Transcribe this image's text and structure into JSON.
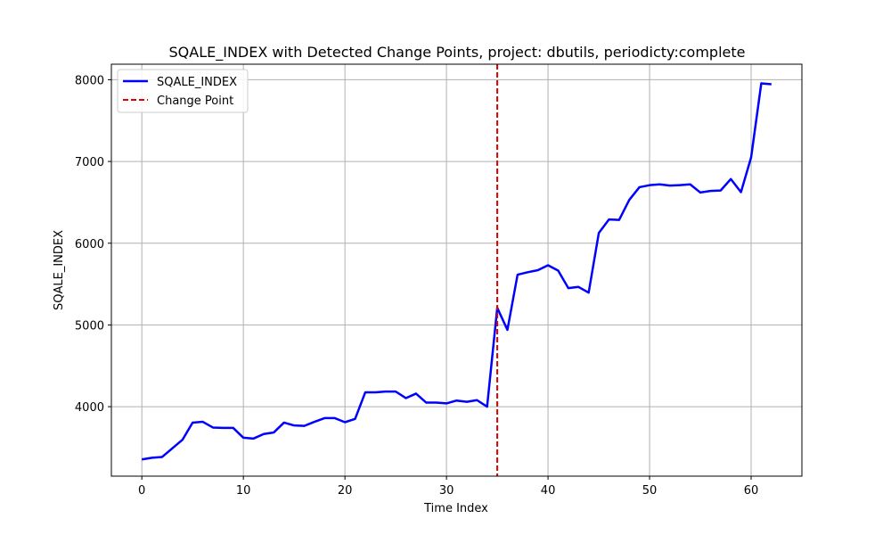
{
  "chart_data": {
    "type": "line",
    "title": "SQALE_INDEX with Detected Change Points, project: dbutils, periodicty:complete",
    "xlabel": "Time Index",
    "ylabel": "SQALE_INDEX",
    "xlim": [
      -3,
      65
    ],
    "ylim": [
      3150,
      8190
    ],
    "xticks": [
      0,
      10,
      20,
      30,
      40,
      50,
      60
    ],
    "yticks": [
      4000,
      5000,
      6000,
      7000,
      8000
    ],
    "grid": true,
    "legend_position": "upper-left",
    "series": [
      {
        "name": "SQALE_INDEX",
        "color": "#0000ff",
        "style": "solid",
        "x": [
          0,
          1,
          2,
          3,
          4,
          5,
          6,
          7,
          8,
          9,
          10,
          11,
          12,
          13,
          14,
          15,
          16,
          17,
          18,
          19,
          20,
          21,
          22,
          23,
          24,
          25,
          26,
          27,
          28,
          29,
          30,
          31,
          32,
          33,
          34,
          35,
          36,
          37,
          38,
          39,
          40,
          41,
          42,
          43,
          44,
          45,
          46,
          47,
          48,
          49,
          50,
          51,
          52,
          53,
          54,
          55,
          56,
          57,
          58,
          59,
          60,
          61,
          62
        ],
        "values": [
          3355,
          3375,
          3385,
          3490,
          3595,
          3805,
          3815,
          3745,
          3740,
          3740,
          3620,
          3610,
          3665,
          3685,
          3805,
          3770,
          3765,
          3815,
          3860,
          3860,
          3810,
          3850,
          4175,
          4175,
          4185,
          4185,
          4105,
          4160,
          4050,
          4050,
          4040,
          4075,
          4060,
          4080,
          4000,
          5210,
          4940,
          5615,
          5645,
          5670,
          5730,
          5665,
          5450,
          5465,
          5395,
          6125,
          6290,
          6285,
          6530,
          6685,
          6710,
          6720,
          6705,
          6710,
          6720,
          6620,
          6640,
          6645,
          6785,
          6625,
          7050,
          7955,
          7945
        ]
      }
    ],
    "change_points": {
      "name": "Change Point",
      "color": "#dd0000",
      "style": "dashed",
      "x": [
        35
      ]
    }
  }
}
